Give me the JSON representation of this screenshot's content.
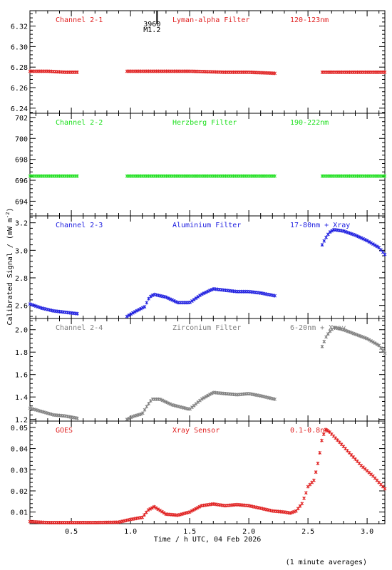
{
  "chart_data": {
    "type": "scatter",
    "xlabel": "Time / h UTC, 04 Feb 2026",
    "ylabel": "Calibrated Signal / (mW m",
    "ylabel_sup": "-2",
    "ylabel_close": ")",
    "footnote": "(1 minute averages)",
    "xlim": [
      0.15,
      3.15
    ],
    "xticks": [
      0.5,
      1.0,
      1.5,
      2.0,
      2.5,
      3.0
    ],
    "xtick_labels": [
      "0.5",
      "1.0",
      "1.5",
      "2.0",
      "2.5",
      "3.0"
    ],
    "marker": {
      "x": 1.17,
      "label_top": "3960",
      "label_bottom": "M1.2"
    },
    "panels": [
      {
        "channel": "Channel 2-1",
        "filter": "Lyman-alpha Filter",
        "band": "120-123nm",
        "color": "#e02020",
        "ylim": [
          6.235,
          6.335
        ],
        "yticks": [
          6.24,
          6.26,
          6.28,
          6.3,
          6.32
        ],
        "ytick_labels": [
          "6.24",
          "6.26",
          "6.28",
          "6.30",
          "6.32"
        ],
        "series": [
          {
            "x": [
              0.15,
              0.3,
              0.45,
              0.55
            ],
            "y": [
              6.276,
              6.276,
              6.275,
              6.275
            ]
          },
          {
            "x": [
              0.97,
              1.2,
              1.5,
              1.8,
              2.0,
              2.22
            ],
            "y": [
              6.276,
              6.276,
              6.276,
              6.275,
              6.275,
              6.274
            ]
          },
          {
            "x": [
              2.62,
              2.8,
              3.0,
              3.15
            ],
            "y": [
              6.275,
              6.275,
              6.275,
              6.275
            ]
          }
        ]
      },
      {
        "channel": "Channel 2-2",
        "filter": "Herzberg Filter",
        "band": "190-222nm",
        "color": "#20e020",
        "ylim": [
          692.6,
          702.4
        ],
        "yticks": [
          694,
          696,
          698,
          700,
          702
        ],
        "ytick_labels": [
          "694",
          "696",
          "698",
          "700",
          "702"
        ],
        "series": [
          {
            "x": [
              0.15,
              0.3,
              0.45,
              0.55
            ],
            "y": [
              696.4,
              696.4,
              696.4,
              696.4
            ]
          },
          {
            "x": [
              0.97,
              1.2,
              1.5,
              1.8,
              2.0,
              2.22
            ],
            "y": [
              696.4,
              696.4,
              696.4,
              696.4,
              696.4,
              696.4
            ]
          },
          {
            "x": [
              2.62,
              2.8,
              3.0,
              3.15
            ],
            "y": [
              696.4,
              696.4,
              696.4,
              696.4
            ]
          }
        ]
      },
      {
        "channel": "Channel 2-3",
        "filter": "Aluminium Filter",
        "band": "17-80nm + Xray",
        "color": "#2020e0",
        "ylim": [
          2.505,
          3.25
        ],
        "yticks": [
          2.6,
          2.8,
          3.0,
          3.2
        ],
        "ytick_labels": [
          "2.6",
          "2.8",
          "3.0",
          "3.2"
        ],
        "series": [
          {
            "x": [
              0.15,
              0.25,
              0.35,
              0.45,
              0.55
            ],
            "y": [
              2.61,
              2.58,
              2.56,
              2.55,
              2.54
            ]
          },
          {
            "x": [
              0.97,
              1.05,
              1.12,
              1.16,
              1.2,
              1.3,
              1.4,
              1.5,
              1.6,
              1.7,
              1.8,
              1.9,
              2.0,
              2.1,
              2.22
            ],
            "y": [
              2.52,
              2.56,
              2.59,
              2.66,
              2.68,
              2.66,
              2.62,
              2.62,
              2.68,
              2.72,
              2.71,
              2.7,
              2.7,
              2.69,
              2.67
            ]
          },
          {
            "x": [
              2.62,
              2.65,
              2.68,
              2.72,
              2.8,
              2.9,
              3.0,
              3.1,
              3.15
            ],
            "y": [
              3.04,
              3.09,
              3.13,
              3.15,
              3.14,
              3.11,
              3.07,
              3.02,
              2.97
            ]
          }
        ]
      },
      {
        "channel": "Channel 2-4",
        "filter": "Zirconium Filter",
        "band": "6-20nm + Xray",
        "color": "#7f7f7f",
        "ylim": [
          1.185,
          2.1
        ],
        "yticks": [
          1.2,
          1.4,
          1.6,
          1.8,
          2.0
        ],
        "ytick_labels": [
          "1.2",
          "1.4",
          "1.6",
          "1.8",
          "2.0"
        ],
        "series": [
          {
            "x": [
              0.15,
              0.25,
              0.35,
              0.45,
              0.55
            ],
            "y": [
              1.3,
              1.27,
              1.24,
              1.23,
              1.21
            ]
          },
          {
            "x": [
              0.97,
              1.03,
              1.1,
              1.14,
              1.18,
              1.25,
              1.35,
              1.5,
              1.6,
              1.7,
              1.8,
              1.9,
              2.0,
              2.1,
              2.22
            ],
            "y": [
              1.2,
              1.23,
              1.25,
              1.32,
              1.38,
              1.38,
              1.33,
              1.29,
              1.38,
              1.44,
              1.43,
              1.42,
              1.43,
              1.41,
              1.38
            ]
          },
          {
            "x": [
              2.62,
              2.65,
              2.68,
              2.72,
              2.8,
              2.9,
              3.0,
              3.1,
              3.15
            ],
            "y": [
              1.85,
              1.93,
              1.98,
              2.02,
              2.0,
              1.96,
              1.92,
              1.86,
              1.79
            ]
          }
        ]
      },
      {
        "channel": "GOES",
        "filter": "Xray Sensor",
        "band": "0.1-0.8nm",
        "color": "#e02020",
        "ylim": [
          0.0045,
          0.053
        ],
        "yticks": [
          0.01,
          0.02,
          0.03,
          0.04,
          0.05
        ],
        "ytick_labels": [
          "0.01",
          "0.02",
          "0.03",
          "0.04",
          "0.05"
        ],
        "series": [
          {
            "x": [
              0.15,
              0.3,
              0.5,
              0.7,
              0.9,
              1.0,
              1.1,
              1.15,
              1.2,
              1.3,
              1.4,
              1.5,
              1.6,
              1.7,
              1.8,
              1.9,
              2.0,
              2.1,
              2.2,
              2.3,
              2.35,
              2.4,
              2.45,
              2.48,
              2.5,
              2.55,
              2.58,
              2.6,
              2.62,
              2.65,
              2.68,
              2.75,
              2.85,
              2.95,
              3.05,
              3.15
            ],
            "y": [
              0.0055,
              0.005,
              0.005,
              0.005,
              0.0052,
              0.0065,
              0.0075,
              0.011,
              0.0125,
              0.009,
              0.0085,
              0.01,
              0.013,
              0.0138,
              0.013,
              0.0135,
              0.013,
              0.0118,
              0.0105,
              0.01,
              0.0095,
              0.0105,
              0.014,
              0.0185,
              0.022,
              0.025,
              0.032,
              0.038,
              0.045,
              0.049,
              0.048,
              0.044,
              0.038,
              0.032,
              0.027,
              0.021
            ]
          }
        ]
      }
    ]
  }
}
